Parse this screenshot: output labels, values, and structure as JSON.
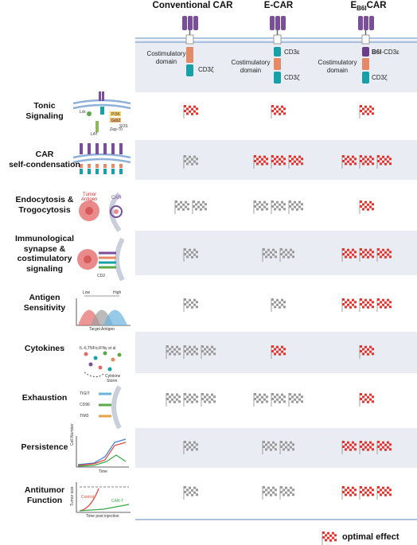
{
  "columns": [
    {
      "id": "conventional",
      "title": "Conventional CAR"
    },
    {
      "id": "ecar",
      "title": "E-CAR"
    },
    {
      "id": "eb6icar",
      "title_main": "E",
      "title_sub": "B6I",
      "title_tail": "CAR"
    }
  ],
  "constructs": {
    "conventional": {
      "costim": "Costimulatory\ndomain",
      "cd3z": "CD3ζ"
    },
    "ecar": {
      "cd3e": "CD3ε",
      "costim": "Costimulatory\ndomain",
      "cd3z": "CD3ζ"
    },
    "eb6icar": {
      "b6i_bold": "B6I",
      "b6i_rest": "-CD3ε",
      "costim": "Costimulatory\ndomain",
      "cd3z": "CD3ζ"
    }
  },
  "rows": [
    {
      "label": "Tonic\nSignaling",
      "flags": [
        {
          "n": 1,
          "type": "optimal"
        },
        {
          "n": 1,
          "type": "optimal"
        },
        {
          "n": 1,
          "type": "optimal"
        }
      ],
      "icon_text": [
        "Lck",
        "PI3K",
        "Grb2",
        "SOS",
        "LAT",
        "Zap-70"
      ]
    },
    {
      "label": "CAR\nself-condensation",
      "flags": [
        {
          "n": 1,
          "type": "gray"
        },
        {
          "n": 3,
          "type": "optimal"
        },
        {
          "n": 3,
          "type": "optimal"
        }
      ]
    },
    {
      "label": "Endocytosis &\nTrogocytosis",
      "flags": [
        {
          "n": 2,
          "type": "gray"
        },
        {
          "n": 3,
          "type": "gray"
        },
        {
          "n": 1,
          "type": "optimal"
        }
      ],
      "icon_text": [
        "Tumor",
        "Antigen",
        "CAR"
      ]
    },
    {
      "label": "Immunological\nsynapse &\ncostimulatory\nsignaling",
      "flags": [
        {
          "n": 1,
          "type": "gray"
        },
        {
          "n": 2,
          "type": "gray"
        },
        {
          "n": 3,
          "type": "optimal"
        }
      ],
      "icon_text": [
        "CD2"
      ]
    },
    {
      "label": "Antigen\nSensitivity",
      "flags": [
        {
          "n": 1,
          "type": "gray"
        },
        {
          "n": 1,
          "type": "gray"
        },
        {
          "n": 3,
          "type": "optimal"
        }
      ],
      "icon_text": [
        "Low",
        "High",
        "Target Antigen"
      ]
    },
    {
      "label": "Cytokines",
      "flags": [
        {
          "n": 3,
          "type": "gray"
        },
        {
          "n": 1,
          "type": "optimal"
        },
        {
          "n": 1,
          "type": "optimal"
        }
      ],
      "icon_text": [
        "IL-6,TNFα,IFNγ et al",
        "Cytokine",
        "Storm"
      ]
    },
    {
      "label": "Exhaustion",
      "flags": [
        {
          "n": 3,
          "type": "gray"
        },
        {
          "n": 3,
          "type": "gray"
        },
        {
          "n": 1,
          "type": "optimal"
        }
      ],
      "icon_text": [
        "TIGIT",
        "CD96",
        "TIM3"
      ]
    },
    {
      "label": "Persistence",
      "flags": [
        {
          "n": 1,
          "type": "gray"
        },
        {
          "n": 2,
          "type": "gray"
        },
        {
          "n": 3,
          "type": "optimal"
        }
      ],
      "icon_text": [
        "Cell Number",
        "Time"
      ]
    },
    {
      "label": "Antitumor\nFunction",
      "flags": [
        {
          "n": 1,
          "type": "gray"
        },
        {
          "n": 2,
          "type": "gray"
        },
        {
          "n": 3,
          "type": "optimal"
        }
      ],
      "icon_text": [
        "Tumor size",
        "Control",
        "CAR-T",
        "Time post injection"
      ]
    }
  ],
  "legend": {
    "label": "optimal effect"
  },
  "colors": {
    "optimal_flag": "#e8322c",
    "gray_flag": "#9a9a9a",
    "band": "#e9edf3",
    "membrane": "#8fb0d8",
    "car_purple": "#7b4e9a",
    "costim_orange": "#e58a66",
    "cd3z_teal": "#18a0a8"
  }
}
